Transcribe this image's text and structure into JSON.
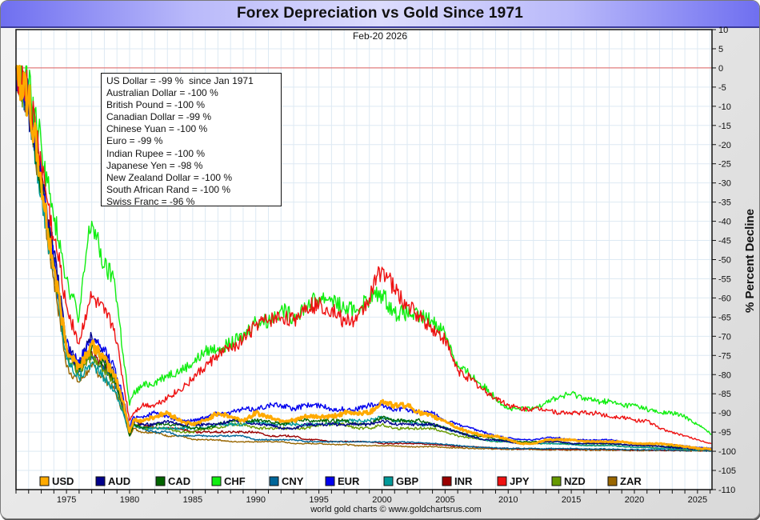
{
  "title": "Forex Depreciation vs Gold Since 1971",
  "date_label": "Feb-20  2026",
  "credit": "world gold charts © www.goldchartsrus.com",
  "info_box": [
    "US Dollar = -99 %  since Jan 1971",
    "Australian Dollar = -100 %",
    "British Pound = -100 %",
    "Canadian Dollar = -99 %",
    "Chinese Yuan = -100 %",
    "Euro = -99 %",
    "Indian Rupee = -100 %",
    "Japanese Yen = -98 %",
    "New Zealand Dollar = -100 %",
    "South African Rand = -100 %",
    "Swiss Franc = -96 %"
  ],
  "chart_data": {
    "type": "line",
    "title": "Forex Depreciation vs Gold Since 1971",
    "subtitle": "Feb-20  2026",
    "xlabel": "",
    "ylabel": "% Percent Decline",
    "xlim": [
      1971,
      2026.15
    ],
    "ylim": [
      -110,
      10
    ],
    "y_ticks": [
      10,
      5,
      0,
      -5,
      -10,
      -15,
      -20,
      -25,
      -30,
      -35,
      -40,
      -45,
      -50,
      -55,
      -60,
      -65,
      -70,
      -75,
      -80,
      -85,
      -90,
      -95,
      -100,
      -105,
      -110
    ],
    "x_ticks": [
      1975,
      1980,
      1985,
      1990,
      1995,
      2000,
      2005,
      2010,
      2015,
      2020,
      2025
    ],
    "grid": true,
    "reference_line": {
      "y": 0,
      "color": "#e06060"
    },
    "legend_position": "bottom",
    "x": [
      1971,
      1972,
      1973,
      1973.5,
      1974,
      1974.5,
      1975,
      1976,
      1976.7,
      1977,
      1978,
      1978.8,
      1979.5,
      1980.0,
      1980.3,
      1981,
      1982,
      1983,
      1984,
      1985,
      1986,
      1987,
      1988,
      1989,
      1990,
      1991,
      1992,
      1993,
      1994,
      1995,
      1996,
      1997,
      1998,
      1999,
      2000,
      2001,
      2002,
      2003,
      2004,
      2005,
      2006,
      2007,
      2008,
      2009,
      2010,
      2011,
      2012,
      2013,
      2014,
      2015,
      2016,
      2017,
      2018,
      2019,
      2020,
      2021,
      2022,
      2023,
      2024,
      2025,
      2026.1
    ],
    "series": [
      {
        "name": "USD",
        "color": "#ffaa00",
        "values": [
          0,
          -8,
          -30,
          -42,
          -52,
          -62,
          -73,
          -78,
          -74,
          -72,
          -76,
          -80,
          -87,
          -95,
          -92,
          -92,
          -91,
          -90,
          -92,
          -93,
          -92,
          -90,
          -91,
          -92,
          -90,
          -91,
          -92,
          -92,
          -91,
          -91,
          -91,
          -90,
          -90,
          -90,
          -87,
          -88,
          -88,
          -90,
          -91,
          -92,
          -94,
          -95,
          -96,
          -96,
          -97,
          -98,
          -98,
          -97,
          -97,
          -97,
          -97.5,
          -97.5,
          -97.5,
          -97.5,
          -98,
          -98,
          -98,
          -98.3,
          -98.8,
          -99.2,
          -99.4
        ]
      },
      {
        "name": "AUD",
        "color": "#00008b",
        "values": [
          0,
          -10,
          -30,
          -40,
          -48,
          -60,
          -72,
          -78,
          -72,
          -70,
          -75,
          -80,
          -88,
          -95,
          -92,
          -93,
          -93,
          -92,
          -93,
          -93,
          -93,
          -93,
          -92,
          -92,
          -93,
          -93,
          -94,
          -94,
          -93,
          -93,
          -93,
          -93,
          -93,
          -93,
          -92,
          -93,
          -93,
          -93,
          -93,
          -94,
          -95,
          -96,
          -97,
          -97,
          -97.5,
          -98,
          -98,
          -97.5,
          -97.5,
          -98,
          -98,
          -98,
          -98,
          -98.2,
          -98.5,
          -98.5,
          -98.7,
          -99,
          -99.2,
          -99.5,
          -99.6
        ]
      },
      {
        "name": "CAD",
        "color": "#006400",
        "values": [
          0,
          -9,
          -30,
          -41,
          -50,
          -62,
          -73,
          -78,
          -74,
          -73,
          -77,
          -81,
          -88,
          -96,
          -93,
          -94,
          -93,
          -93,
          -93,
          -94,
          -94,
          -93,
          -92,
          -92,
          -92,
          -92,
          -93,
          -92,
          -92,
          -92,
          -92,
          -92,
          -93,
          -93,
          -91,
          -92,
          -92,
          -92,
          -93,
          -94,
          -95,
          -96,
          -96,
          -97,
          -97,
          -97.5,
          -97.5,
          -97.5,
          -97.5,
          -98,
          -98,
          -98,
          -98,
          -98.2,
          -98.5,
          -98.5,
          -98.7,
          -98.8,
          -99,
          -99.2,
          -99.4
        ]
      },
      {
        "name": "CHF",
        "color": "#11ee11",
        "values": [
          0,
          -5,
          -20,
          -30,
          -40,
          -45,
          -55,
          -65,
          -45,
          -40,
          -52,
          -55,
          -75,
          -88,
          -85,
          -83,
          -82,
          -80,
          -79,
          -77,
          -74,
          -73,
          -72,
          -70,
          -66,
          -66,
          -63,
          -65,
          -62,
          -60,
          -60,
          -63,
          -63,
          -60,
          -59,
          -64,
          -64,
          -65,
          -66,
          -69,
          -78,
          -80,
          -83,
          -86,
          -89,
          -89,
          -89,
          -87,
          -86,
          -85,
          -86,
          -87,
          -87,
          -88,
          -88,
          -89,
          -90,
          -90,
          -91,
          -93,
          -95.5
        ]
      },
      {
        "name": "CNY",
        "color": "#006699",
        "values": [
          0,
          -9,
          -31,
          -42,
          -51,
          -63,
          -74,
          -79,
          -76,
          -75,
          -79,
          -82,
          -89,
          -96,
          -93,
          -94,
          -95,
          -95,
          -96,
          -96,
          -96,
          -96,
          -96,
          -96,
          -97,
          -97,
          -97,
          -97,
          -97.5,
          -97.5,
          -97.5,
          -97.5,
          -97.5,
          -97.5,
          -97.6,
          -97.6,
          -97.6,
          -97.8,
          -98,
          -98.2,
          -98.5,
          -98.8,
          -99,
          -99.1,
          -99.2,
          -99.3,
          -99.3,
          -99.3,
          -99.3,
          -99.3,
          -99.4,
          -99.4,
          -99.4,
          -99.5,
          -99.6,
          -99.6,
          -99.6,
          -99.7,
          -99.8,
          -99.8,
          -99.9
        ]
      },
      {
        "name": "EUR",
        "color": "#0000ee",
        "values": [
          0,
          -8,
          -29,
          -40,
          -50,
          -61,
          -72,
          -77,
          -72,
          -71,
          -74,
          -78,
          -86,
          -94,
          -91,
          -91,
          -90,
          -91,
          -92,
          -92,
          -91,
          -90,
          -90,
          -89,
          -89,
          -88,
          -88,
          -89,
          -88,
          -88,
          -89,
          -89,
          -89,
          -88,
          -88,
          -89,
          -89,
          -90,
          -90,
          -92,
          -93,
          -94,
          -95,
          -96,
          -96.5,
          -97,
          -97,
          -96.5,
          -96.5,
          -97,
          -97,
          -97,
          -97,
          -97.5,
          -98,
          -98,
          -98,
          -98.3,
          -98.6,
          -99,
          -99.2
        ]
      },
      {
        "name": "GBP",
        "color": "#009999",
        "values": [
          0,
          -10,
          -32,
          -44,
          -53,
          -65,
          -76,
          -81,
          -78,
          -77,
          -81,
          -84,
          -90,
          -96,
          -93,
          -94,
          -94,
          -94,
          -94,
          -94,
          -94,
          -93,
          -93,
          -93,
          -92,
          -93,
          -93,
          -93,
          -93,
          -93,
          -93,
          -92,
          -92,
          -92,
          -91,
          -92,
          -92,
          -93,
          -93,
          -94,
          -95,
          -96,
          -97,
          -97.5,
          -97.5,
          -98,
          -98,
          -98,
          -98,
          -98.2,
          -98.5,
          -98.5,
          -98.5,
          -98.7,
          -99,
          -99,
          -99.2,
          -99.3,
          -99.4,
          -99.5,
          -99.6
        ]
      },
      {
        "name": "INR",
        "color": "#990000",
        "values": [
          0,
          -9,
          -30,
          -41,
          -50,
          -62,
          -73,
          -78,
          -75,
          -74,
          -78,
          -81,
          -88,
          -95,
          -93,
          -93,
          -94,
          -94,
          -94,
          -95,
          -95,
          -95,
          -95,
          -95,
          -95,
          -96,
          -96,
          -96,
          -97,
          -97,
          -97.5,
          -97.5,
          -97.5,
          -97.5,
          -98,
          -98,
          -98,
          -98,
          -98.2,
          -98.5,
          -98.7,
          -98.8,
          -99,
          -99.2,
          -99.3,
          -99.4,
          -99.4,
          -99.5,
          -99.5,
          -99.5,
          -99.5,
          -99.5,
          -99.6,
          -99.6,
          -99.7,
          -99.7,
          -99.7,
          -99.8,
          -99.8,
          -99.8,
          -99.9
        ]
      },
      {
        "name": "JPY",
        "color": "#ee1111",
        "values": [
          0,
          -7,
          -25,
          -35,
          -45,
          -52,
          -62,
          -72,
          -62,
          -60,
          -64,
          -68,
          -82,
          -92,
          -90,
          -88,
          -88,
          -86,
          -84,
          -81,
          -78,
          -75,
          -73,
          -71,
          -67,
          -66,
          -65,
          -66,
          -62,
          -62,
          -63,
          -66,
          -66,
          -60,
          -52,
          -58,
          -62,
          -65,
          -68,
          -71,
          -79,
          -81,
          -84,
          -86,
          -88,
          -89,
          -89,
          -89,
          -90,
          -90,
          -90,
          -90,
          -91,
          -91,
          -92,
          -92,
          -94,
          -95,
          -96,
          -97,
          -98
        ]
      },
      {
        "name": "NZD",
        "color": "#669900",
        "values": [
          0,
          -9,
          -31,
          -42,
          -52,
          -63,
          -75,
          -80,
          -76,
          -75,
          -79,
          -82,
          -89,
          -96,
          -93,
          -94,
          -94,
          -94,
          -95,
          -95,
          -94,
          -94,
          -93,
          -93,
          -94,
          -94,
          -94,
          -94,
          -94,
          -93,
          -93,
          -93,
          -94,
          -94,
          -93,
          -94,
          -94,
          -94,
          -94,
          -95,
          -96,
          -96.5,
          -97,
          -97.5,
          -97.5,
          -98,
          -98,
          -98,
          -98,
          -98.2,
          -98.5,
          -98.5,
          -98.5,
          -98.7,
          -99,
          -99,
          -99.2,
          -99.3,
          -99.5,
          -99.6,
          -99.7
        ]
      },
      {
        "name": "ZAR",
        "color": "#996600",
        "values": [
          0,
          -9,
          -32,
          -45,
          -55,
          -66,
          -78,
          -82,
          -79,
          -78,
          -81,
          -84,
          -90,
          -96,
          -94,
          -95,
          -95,
          -96,
          -96,
          -97,
          -97,
          -97,
          -97.5,
          -97.5,
          -97.5,
          -97.5,
          -97.5,
          -98,
          -98,
          -98,
          -98.2,
          -98.2,
          -98.5,
          -98.5,
          -98.5,
          -98.6,
          -98.8,
          -98.8,
          -98.8,
          -99,
          -99.1,
          -99.2,
          -99.3,
          -99.4,
          -99.5,
          -99.5,
          -99.5,
          -99.6,
          -99.6,
          -99.7,
          -99.7,
          -99.7,
          -99.7,
          -99.7,
          -99.8,
          -99.8,
          -99.8,
          -99.8,
          -99.9,
          -99.9,
          -99.9
        ]
      }
    ]
  }
}
